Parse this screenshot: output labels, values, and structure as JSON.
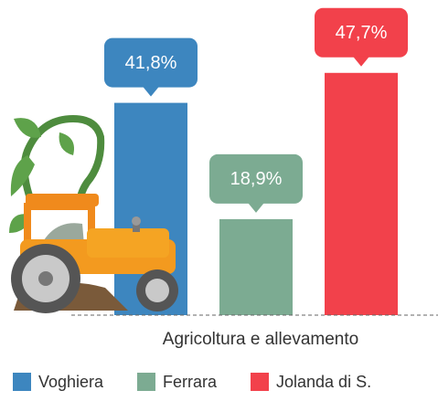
{
  "chart_data": {
    "type": "bar",
    "categories": [
      "Agricoltura e allevamento"
    ],
    "series": [
      {
        "name": "Voghiera",
        "color": "#3d86bf",
        "values": [
          41.8
        ],
        "value_labels": [
          "41,8%"
        ]
      },
      {
        "name": "Ferrara",
        "color": "#7cab92",
        "values": [
          18.9
        ],
        "value_labels": [
          "18,9%"
        ]
      },
      {
        "name": "Jolanda di S.",
        "color": "#f2414b",
        "values": [
          47.7
        ],
        "value_labels": [
          "47,7%"
        ]
      }
    ]
  }
}
